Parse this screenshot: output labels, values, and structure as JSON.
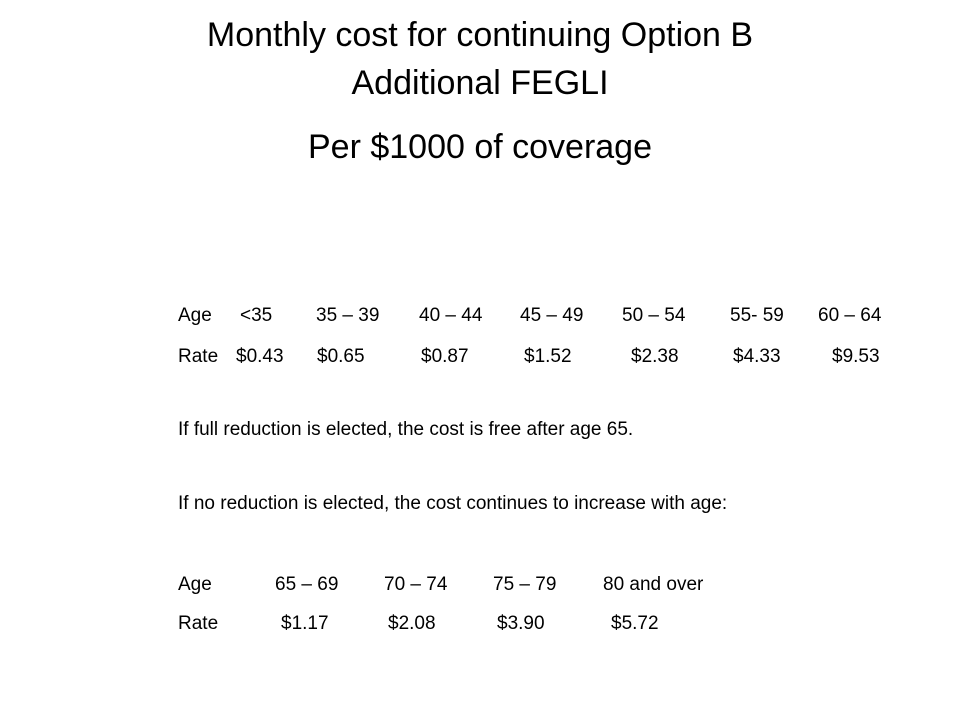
{
  "title": {
    "line1": "Monthly cost for continuing Option B",
    "line2": "Additional FEGLI",
    "line3": "Per $1000 of coverage"
  },
  "table1": {
    "age_label": "Age",
    "rate_label": "Rate",
    "ages": [
      "<35",
      "35 – 39",
      "40 – 44",
      "45 – 49",
      "50 – 54",
      "55- 59",
      "60 – 64"
    ],
    "rates": [
      "$0.43",
      "$0.65",
      "$0.87",
      "$1.52",
      "$2.38",
      "$4.33",
      "$9.53"
    ]
  },
  "note_full_reduction": "If full reduction is elected, the cost is free after age 65.",
  "note_no_reduction": "If no reduction is elected, the cost continues to increase with age:",
  "table2": {
    "age_label": "Age",
    "rate_label": "Rate",
    "ages": [
      "65 – 69",
      "70 – 74",
      "75 – 79",
      "80 and over"
    ],
    "rates": [
      "$1.17",
      "$2.08",
      "$3.90",
      "$5.72"
    ]
  }
}
